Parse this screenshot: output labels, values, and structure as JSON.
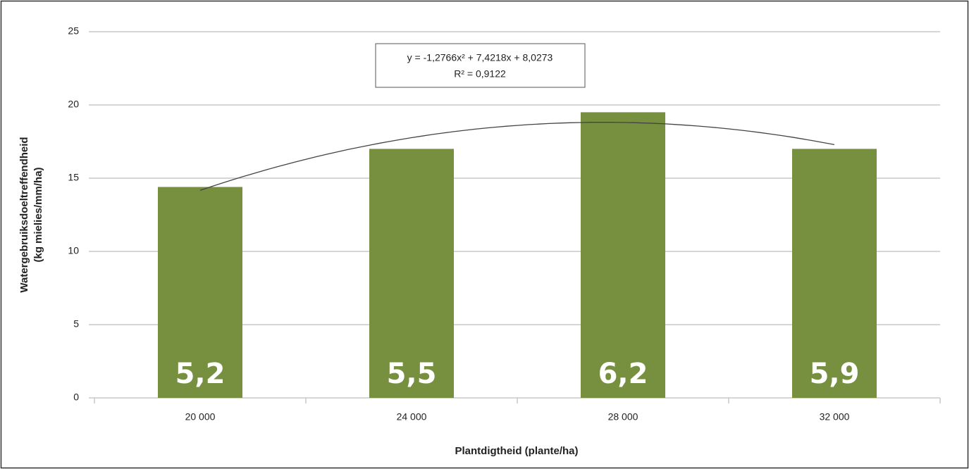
{
  "chart_data": {
    "type": "bar",
    "categories": [
      "20 000",
      "24 000",
      "28 000",
      "32 000"
    ],
    "values": [
      14.4,
      17.0,
      19.5,
      17.0
    ],
    "bar_annotations": [
      "5,2",
      "5,5",
      "6,2",
      "5,9"
    ],
    "color": "#77903f",
    "ylim": [
      0,
      25
    ],
    "yticks": [
      0,
      5,
      10,
      15,
      20,
      25
    ],
    "grid": true,
    "xlabel": "Plantdigtheid (plante/ha)",
    "ylabel": [
      "Watergebruiksdoeltreffendheid",
      "(kg mielies/mm/ha)"
    ],
    "trendline": {
      "equation": "y = -1,2766x² + 7,4218x + 8,0273",
      "r2": "R² = 0,9122",
      "coefficients": [
        -1.2766,
        7.4218,
        8.0273
      ]
    }
  }
}
